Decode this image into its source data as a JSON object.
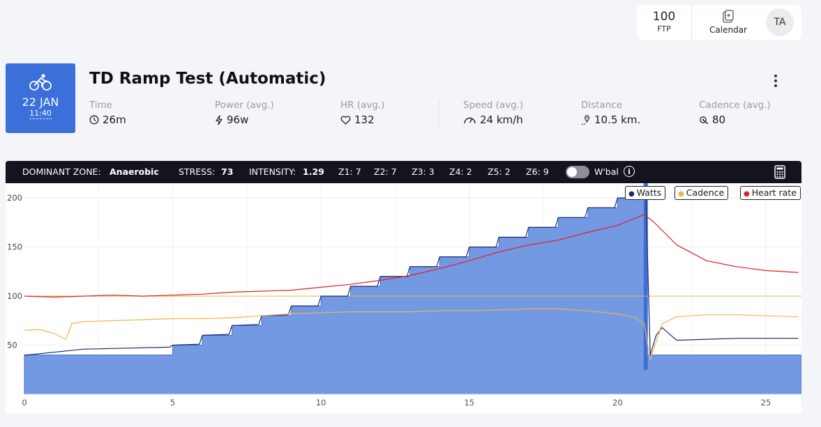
{
  "header": {
    "ftp_value": "100",
    "ftp_label": "FTP",
    "calendar_label": "Calendar",
    "avatar_initials": "TA"
  },
  "workout": {
    "date": "22 JAN",
    "time": "11:40",
    "title": "TD Ramp Test (Automatic)",
    "stats": [
      {
        "label": "Time",
        "value": "26m",
        "icon": "clock-icon"
      },
      {
        "label": "Power (avg.)",
        "value": "96w",
        "icon": "bolt-icon"
      },
      {
        "label": "HR (avg.)",
        "value": "132",
        "icon": "heart-icon"
      },
      {
        "label": "Speed (avg.)",
        "value": "24 km/h",
        "icon": "speedometer-icon"
      },
      {
        "label": "Distance",
        "value": "10.5 km.",
        "icon": "route-icon"
      },
      {
        "label": "Cadence (avg.)",
        "value": "80",
        "icon": "cadence-icon"
      }
    ]
  },
  "zones": {
    "dominant_label": "DOMINANT ZONE:",
    "dominant_value": "Anaerobic",
    "stress_label": "STRESS:",
    "stress_value": "73",
    "intensity_label": "INTENSITY:",
    "intensity_value": "1.29",
    "z1": "Z1: 7",
    "z2": "Z2: 7",
    "z3": "Z3: 3",
    "z4": "Z4: 2",
    "z5": "Z5: 2",
    "z6": "Z6: 9",
    "wbal_label": "W'bal"
  },
  "colors": {
    "watts_fill": "#7499e3",
    "watts_line": "#1c2a66",
    "ftp_line": "#3f6fd6",
    "cadence": "#f0b24a",
    "heart_rate": "#e01e25"
  },
  "chart_data": {
    "type": "area",
    "xlabel": "",
    "ylabel": "",
    "xlim": [
      0,
      26.2
    ],
    "ylim": [
      0,
      215
    ],
    "x_ticks": [
      0,
      5,
      10,
      15,
      20,
      25
    ],
    "y_ticks": [
      50,
      100,
      150,
      200
    ],
    "legend": [
      "Watts",
      "Cadence",
      "Heart rate"
    ],
    "legend_position": "top-right",
    "target_steps": [
      {
        "x0": 0,
        "x1": 5,
        "y": 40
      },
      {
        "x0": 5,
        "x1": 6,
        "y": 50
      },
      {
        "x0": 6,
        "x1": 7,
        "y": 60
      },
      {
        "x0": 7,
        "x1": 8,
        "y": 70
      },
      {
        "x0": 8,
        "x1": 9,
        "y": 80
      },
      {
        "x0": 9,
        "x1": 10,
        "y": 90
      },
      {
        "x0": 10,
        "x1": 11,
        "y": 100
      },
      {
        "x0": 11,
        "x1": 12,
        "y": 110
      },
      {
        "x0": 12,
        "x1": 13,
        "y": 120
      },
      {
        "x0": 13,
        "x1": 14,
        "y": 130
      },
      {
        "x0": 14,
        "x1": 15,
        "y": 140
      },
      {
        "x0": 15,
        "x1": 16,
        "y": 150
      },
      {
        "x0": 16,
        "x1": 17,
        "y": 160
      },
      {
        "x0": 17,
        "x1": 18,
        "y": 170
      },
      {
        "x0": 18,
        "x1": 19,
        "y": 180
      },
      {
        "x0": 19,
        "x1": 20,
        "y": 190
      },
      {
        "x0": 20,
        "x1": 21,
        "y": 200
      },
      {
        "x0": 21,
        "x1": 26.2,
        "y": 40
      }
    ],
    "series": [
      {
        "name": "Watts",
        "x": [
          0,
          0.1,
          2,
          4.9,
          5,
          5.9,
          6,
          6.9,
          7,
          7.9,
          8,
          8.9,
          9,
          9.9,
          10,
          10.9,
          11,
          11.9,
          12,
          12.9,
          13,
          13.9,
          14,
          14.9,
          15,
          15.9,
          16,
          16.9,
          17,
          17.9,
          18,
          18.9,
          19,
          19.9,
          20,
          20.8,
          20.95,
          21.1,
          21.3,
          21.5,
          21.8,
          22,
          24,
          26.1
        ],
        "y": [
          40,
          40,
          46,
          48,
          50,
          51,
          60,
          61,
          70,
          71,
          80,
          81,
          90,
          90,
          100,
          100,
          110,
          110,
          120,
          120,
          130,
          130,
          140,
          140,
          150,
          150,
          160,
          160,
          170,
          170,
          180,
          180,
          190,
          190,
          200,
          200,
          205,
          40,
          60,
          68,
          60,
          55,
          57,
          57
        ]
      },
      {
        "name": "Cadence",
        "x": [
          0,
          0.5,
          1,
          1.4,
          1.6,
          2,
          3,
          4,
          5,
          6,
          7,
          8,
          9,
          10,
          11,
          12,
          13,
          14,
          15,
          16,
          17,
          18,
          19,
          20,
          20.6,
          20.9,
          21.1,
          21.5,
          22,
          23,
          24,
          25,
          26.1
        ],
        "y": [
          65,
          66,
          62,
          56,
          72,
          74,
          75,
          76,
          77,
          77,
          78,
          80,
          82,
          83,
          84,
          84,
          84,
          85,
          85,
          86,
          87,
          87,
          85,
          82,
          78,
          72,
          35,
          72,
          79,
          81,
          81,
          80,
          79
        ]
      },
      {
        "name": "Heart rate",
        "x": [
          0,
          1,
          2,
          3,
          4,
          5,
          6,
          7,
          8,
          9,
          10,
          11,
          12,
          13,
          14,
          15,
          16,
          17,
          18,
          19,
          20,
          20.9,
          21.2,
          22,
          23,
          24,
          25,
          26.1
        ],
        "y": [
          100,
          99,
          100,
          101,
          100,
          101,
          102,
          104,
          105,
          106,
          109,
          112,
          116,
          121,
          128,
          136,
          145,
          152,
          157,
          165,
          172,
          183,
          176,
          152,
          136,
          130,
          126,
          124
        ]
      }
    ]
  }
}
